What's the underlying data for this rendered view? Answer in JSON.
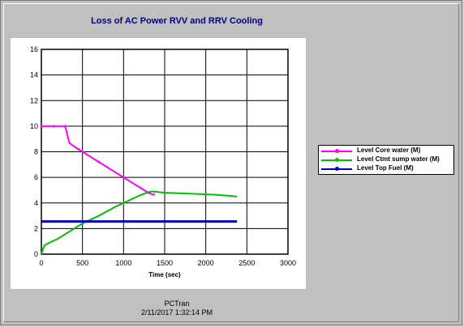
{
  "chart_data": {
    "type": "line",
    "title": "Loss of AC Power RVV and RRV Cooling",
    "xlabel": "Time (sec)",
    "ylabel": "",
    "xlim": [
      0,
      3000
    ],
    "ylim": [
      0,
      16
    ],
    "x_ticks": [
      0,
      500,
      1000,
      1500,
      2000,
      2500,
      3000
    ],
    "y_ticks": [
      0,
      2,
      4,
      6,
      8,
      10,
      12,
      14,
      16
    ],
    "grid": true,
    "legend_position": "right",
    "series": [
      {
        "name": "Level Core water (M)",
        "color": "#ff00ff",
        "x": [
          0,
          50,
          100,
          150,
          200,
          250,
          290,
          340,
          380,
          450,
          500,
          600,
          700,
          800,
          900,
          1000,
          1100,
          1200,
          1300,
          1360,
          1380
        ],
        "y": [
          10,
          10,
          10,
          10,
          10,
          10,
          10,
          8.7,
          8.5,
          8.2,
          8.0,
          7.6,
          7.2,
          6.8,
          6.4,
          6.0,
          5.6,
          5.2,
          4.8,
          4.65,
          4.7
        ]
      },
      {
        "name": "Level Ctmt sump water (M)",
        "color": "#00c000",
        "x": [
          0,
          20,
          40,
          100,
          200,
          300,
          400,
          500,
          600,
          700,
          800,
          900,
          1000,
          1100,
          1200,
          1300,
          1350,
          1500,
          1700,
          1900,
          2100,
          2300,
          2380
        ],
        "y": [
          0,
          0.4,
          0.7,
          0.9,
          1.2,
          1.6,
          2.0,
          2.4,
          2.7,
          3.0,
          3.35,
          3.7,
          4.0,
          4.3,
          4.6,
          4.85,
          4.9,
          4.8,
          4.75,
          4.7,
          4.65,
          4.55,
          4.5
        ]
      },
      {
        "name": "Level Top Fuel (M)",
        "color": "#0000c0",
        "x": [
          0,
          2380
        ],
        "y": [
          2.55,
          2.55
        ]
      }
    ]
  },
  "footer": {
    "app": "PCTran",
    "timestamp": "2/11/2017 1:32:14 PM"
  }
}
